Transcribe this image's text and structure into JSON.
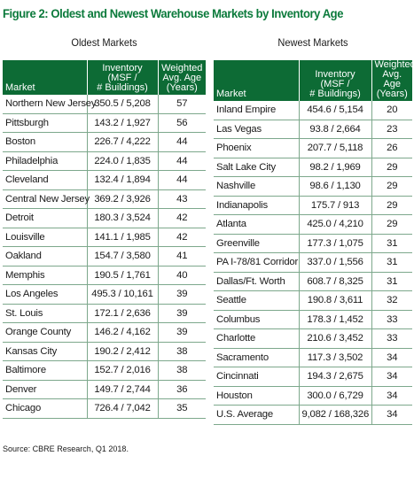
{
  "figure_title": "Figure 2: Oldest and Newest Warehouse Markets by Inventory Age",
  "source": "Source: CBRE Research, Q1 2018.",
  "headers": {
    "market": "Market",
    "inventory_line1": "Inventory (MSF /",
    "inventory_line2": "# Buildings)",
    "age_line1": "Weighted",
    "age_line2": "Avg. Age",
    "age_line3": "(Years)"
  },
  "oldest": {
    "title": "Oldest Markets",
    "rows": [
      {
        "market": "Northern New Jersey",
        "inventory": "350.5 /  5,208",
        "age": "57"
      },
      {
        "market": "Pittsburgh",
        "inventory": "143.2 / 1,927",
        "age": "56"
      },
      {
        "market": "Boston",
        "inventory": "226.7 / 4,222",
        "age": "44"
      },
      {
        "market": "Philadelphia",
        "inventory": "224.0 / 1,835",
        "age": "44"
      },
      {
        "market": "Cleveland",
        "inventory": "132.4 / 1,894",
        "age": "44"
      },
      {
        "market": "Central New Jersey",
        "inventory": "369.2 / 3,926",
        "age": "43"
      },
      {
        "market": "Detroit",
        "inventory": "180.3 / 3,524",
        "age": "42"
      },
      {
        "market": "Louisville",
        "inventory": "141.1 / 1,985",
        "age": "42"
      },
      {
        "market": "Oakland",
        "inventory": "154.7 / 3,580",
        "age": "41"
      },
      {
        "market": "Memphis",
        "inventory": "190.5 / 1,761",
        "age": "40"
      },
      {
        "market": "Los Angeles",
        "inventory": "495.3 / 10,161",
        "age": "39"
      },
      {
        "market": "St. Louis",
        "inventory": "172.1 / 2,636",
        "age": "39"
      },
      {
        "market": "Orange County",
        "inventory": "146.2 / 4,162",
        "age": "39"
      },
      {
        "market": "Kansas City",
        "inventory": "190.2 / 2,412",
        "age": "38"
      },
      {
        "market": "Baltimore",
        "inventory": "152.7 / 2,016",
        "age": "38"
      },
      {
        "market": "Denver",
        "inventory": "149.7 / 2,744",
        "age": "36"
      },
      {
        "market": "Chicago",
        "inventory": "726.4 / 7,042",
        "age": "35"
      }
    ]
  },
  "newest": {
    "title": "Newest Markets",
    "rows": [
      {
        "market": "Inland Empire",
        "inventory": "454.6 / 5,154",
        "age": "20"
      },
      {
        "market": "Las Vegas",
        "inventory": "93.8 / 2,664",
        "age": "23"
      },
      {
        "market": "Phoenix",
        "inventory": "207.7 / 5,118",
        "age": "26"
      },
      {
        "market": "Salt Lake City",
        "inventory": "98.2 / 1,969",
        "age": "29"
      },
      {
        "market": "Nashville",
        "inventory": "98.6 / 1,130",
        "age": "29"
      },
      {
        "market": "Indianapolis",
        "inventory": "175.7 / 913",
        "age": "29"
      },
      {
        "market": "Atlanta",
        "inventory": "425.0 / 4,210",
        "age": "29"
      },
      {
        "market": "Greenville",
        "inventory": "177.3 / 1,075",
        "age": "31"
      },
      {
        "market": "PA I-78/81 Corridor",
        "inventory": "337.0 / 1,556",
        "age": "31"
      },
      {
        "market": "Dallas/Ft. Worth",
        "inventory": "608.7 / 8,325",
        "age": "31"
      },
      {
        "market": "Seattle",
        "inventory": "190.8 / 3,611",
        "age": "32"
      },
      {
        "market": "Columbus",
        "inventory": "178.3 / 1,452",
        "age": "33"
      },
      {
        "market": "Charlotte",
        "inventory": "210.6 / 3,452",
        "age": "33"
      },
      {
        "market": "Sacramento",
        "inventory": "117.3 / 3,502",
        "age": "34"
      },
      {
        "market": "Cincinnati",
        "inventory": "194.3 / 2,675",
        "age": "34"
      },
      {
        "market": "Houston",
        "inventory": "300.0 / 6,729",
        "age": "34"
      },
      {
        "market": "U.S. Average",
        "inventory": "9,082 / 168,326",
        "age": "34"
      }
    ]
  },
  "colors": {
    "title_green": "#0b7a3b",
    "header_green": "#0d6b35",
    "rule_green": "#7da88c"
  }
}
